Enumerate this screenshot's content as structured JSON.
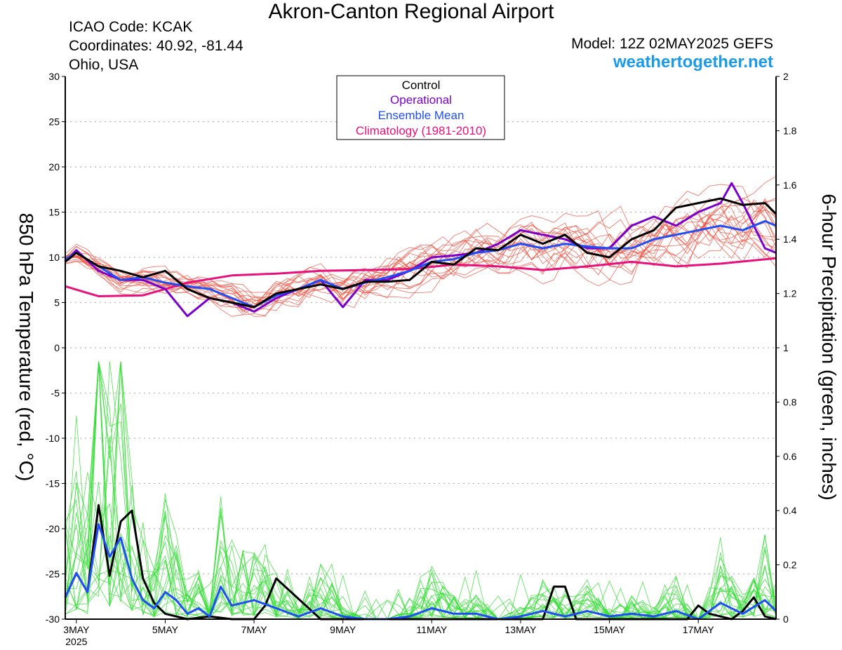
{
  "header": {
    "title": "Akron-Canton Regional Airport",
    "icao": "ICAO Code: KCAK",
    "coords": "Coordinates: 40.92, -81.44",
    "region": "Ohio, USA",
    "model": "Model: 12Z 02MAY2025 GEFS",
    "site": "weathertogether.net"
  },
  "colors": {
    "control": "#000000",
    "operational": "#7a00cc",
    "ensemble_mean": "#1f4ef5",
    "climatology": "#e8107a",
    "members_temp": "#f04a3a",
    "members_precip": "#33dd33",
    "site": "#1a9ae8"
  },
  "chart_data": {
    "type": "line",
    "grid": true,
    "legend_position": "top-center",
    "ylabel_left": "850 hPa Temperature (red, °C)",
    "ylabel_right": "6-hour Precipitation (green, inches)",
    "ylim_left": [
      -30,
      30
    ],
    "ylim_right": [
      0,
      2
    ],
    "yticks_left": [
      "30",
      "25",
      "20",
      "15",
      "10",
      "5",
      "0",
      "-5",
      "-10",
      "-15",
      "-20",
      "-25",
      "-30"
    ],
    "yticks_right": [
      "2",
      "1.8",
      "1.6",
      "1.4",
      "1.2",
      "1",
      "0.8",
      "0.6",
      "0.4",
      "0.2",
      "0"
    ],
    "x_start": "2025-05-02T18:00Z",
    "x_end": "2025-05-18T18:00Z",
    "x_ticks": [
      {
        "label": "3MAY",
        "sub": "2025",
        "x": "2025-05-03T00:00Z"
      },
      {
        "label": "5MAY",
        "x": "2025-05-05T00:00Z"
      },
      {
        "label": "7MAY",
        "x": "2025-05-07T00:00Z"
      },
      {
        "label": "9MAY",
        "x": "2025-05-09T00:00Z"
      },
      {
        "label": "11MAY",
        "x": "2025-05-11T00:00Z"
      },
      {
        "label": "13MAY",
        "x": "2025-05-13T00:00Z"
      },
      {
        "label": "15MAY",
        "x": "2025-05-15T00:00Z"
      },
      {
        "label": "17MAY",
        "x": "2025-05-17T00:00Z"
      }
    ],
    "legend": [
      "Control",
      "Operational",
      "Ensemble Mean",
      "Climatology (1981-2010)"
    ],
    "series": [
      {
        "name": "Control",
        "axis": "left",
        "x": [
          "2025-05-02T18:00Z",
          "2025-05-03T00:00Z",
          "2025-05-03T12:00Z",
          "2025-05-04T00:00Z",
          "2025-05-04T12:00Z",
          "2025-05-05T00:00Z",
          "2025-05-05T12:00Z",
          "2025-05-06T00:00Z",
          "2025-05-06T12:00Z",
          "2025-05-07T00:00Z",
          "2025-05-07T12:00Z",
          "2025-05-08T00:00Z",
          "2025-05-08T12:00Z",
          "2025-05-09T00:00Z",
          "2025-05-09T12:00Z",
          "2025-05-10T00:00Z",
          "2025-05-10T12:00Z",
          "2025-05-11T00:00Z",
          "2025-05-11T12:00Z",
          "2025-05-12T00:00Z",
          "2025-05-12T12:00Z",
          "2025-05-13T00:00Z",
          "2025-05-13T12:00Z",
          "2025-05-14T00:00Z",
          "2025-05-14T12:00Z",
          "2025-05-15T00:00Z",
          "2025-05-15T12:00Z",
          "2025-05-16T00:00Z",
          "2025-05-16T12:00Z",
          "2025-05-17T00:00Z",
          "2025-05-17T12:00Z",
          "2025-05-18T00:00Z",
          "2025-05-18T12:00Z",
          "2025-05-18T18:00Z"
        ],
        "values": [
          9.5,
          10.5,
          9.0,
          8.5,
          7.8,
          8.5,
          6.5,
          5.5,
          5.0,
          4.5,
          6.0,
          6.5,
          7.0,
          6.5,
          7.3,
          7.3,
          7.5,
          9.5,
          9.2,
          11.0,
          10.8,
          12.5,
          11.5,
          12.5,
          10.5,
          10.0,
          12.0,
          13.0,
          15.5,
          16.0,
          16.5,
          15.8,
          16.0,
          14.8
        ]
      },
      {
        "name": "Operational",
        "axis": "left",
        "x": [
          "2025-05-02T18:00Z",
          "2025-05-03T00:00Z",
          "2025-05-03T12:00Z",
          "2025-05-04T00:00Z",
          "2025-05-04T12:00Z",
          "2025-05-05T00:00Z",
          "2025-05-05T12:00Z",
          "2025-05-06T00:00Z",
          "2025-05-06T12:00Z",
          "2025-05-07T00:00Z",
          "2025-05-07T12:00Z",
          "2025-05-08T00:00Z",
          "2025-05-08T12:00Z",
          "2025-05-09T00:00Z",
          "2025-05-09T12:00Z",
          "2025-05-10T00:00Z",
          "2025-05-10T12:00Z",
          "2025-05-11T00:00Z",
          "2025-05-11T12:00Z",
          "2025-05-12T00:00Z",
          "2025-05-12T12:00Z",
          "2025-05-13T00:00Z",
          "2025-05-13T12:00Z",
          "2025-05-14T00:00Z",
          "2025-05-14T12:00Z",
          "2025-05-15T00:00Z",
          "2025-05-15T12:00Z",
          "2025-05-16T00:00Z",
          "2025-05-16T12:00Z",
          "2025-05-17T00:00Z",
          "2025-05-17T12:00Z",
          "2025-05-17T18:00Z",
          "2025-05-18T00:00Z",
          "2025-05-18T12:00Z",
          "2025-05-18T18:00Z"
        ],
        "values": [
          9.5,
          10.8,
          8.5,
          7.5,
          7.5,
          6.5,
          3.5,
          5.5,
          5.0,
          4.0,
          5.5,
          6.5,
          7.5,
          4.5,
          7.5,
          7.5,
          8.5,
          10.0,
          10.2,
          10.5,
          11.5,
          13.0,
          12.5,
          12.0,
          11.0,
          11.0,
          13.5,
          14.5,
          13.5,
          15.0,
          16.0,
          18.2,
          16.0,
          11.0,
          10.5
        ]
      },
      {
        "name": "Ensemble Mean",
        "axis": "left",
        "x": [
          "2025-05-02T18:00Z",
          "2025-05-03T00:00Z",
          "2025-05-03T12:00Z",
          "2025-05-04T00:00Z",
          "2025-05-04T12:00Z",
          "2025-05-05T00:00Z",
          "2025-05-05T12:00Z",
          "2025-05-06T00:00Z",
          "2025-05-06T12:00Z",
          "2025-05-07T00:00Z",
          "2025-05-07T12:00Z",
          "2025-05-08T00:00Z",
          "2025-05-08T12:00Z",
          "2025-05-09T00:00Z",
          "2025-05-09T12:00Z",
          "2025-05-10T00:00Z",
          "2025-05-10T12:00Z",
          "2025-05-11T00:00Z",
          "2025-05-11T12:00Z",
          "2025-05-12T00:00Z",
          "2025-05-12T12:00Z",
          "2025-05-13T00:00Z",
          "2025-05-13T12:00Z",
          "2025-05-14T00:00Z",
          "2025-05-14T12:00Z",
          "2025-05-15T00:00Z",
          "2025-05-15T12:00Z",
          "2025-05-16T00:00Z",
          "2025-05-16T12:00Z",
          "2025-05-17T00:00Z",
          "2025-05-17T12:00Z",
          "2025-05-18T00:00Z",
          "2025-05-18T12:00Z",
          "2025-05-18T18:00Z"
        ],
        "values": [
          9.8,
          10.5,
          9.0,
          7.5,
          7.8,
          7.2,
          6.8,
          6.5,
          5.5,
          4.5,
          5.8,
          6.5,
          7.5,
          6.5,
          7.2,
          7.8,
          8.5,
          9.5,
          9.8,
          10.5,
          10.8,
          11.5,
          11.0,
          11.5,
          11.2,
          11.0,
          11.0,
          12.0,
          12.5,
          13.0,
          13.5,
          13.0,
          14.0,
          13.5
        ]
      },
      {
        "name": "Climatology (1981-2010)",
        "axis": "left",
        "x": [
          "2025-05-02T18:00Z",
          "2025-05-03T12:00Z",
          "2025-05-04T12:00Z",
          "2025-05-05T12:00Z",
          "2025-05-06T12:00Z",
          "2025-05-07T12:00Z",
          "2025-05-08T12:00Z",
          "2025-05-09T12:00Z",
          "2025-05-10T12:00Z",
          "2025-05-11T12:00Z",
          "2025-05-12T12:00Z",
          "2025-05-13T12:00Z",
          "2025-05-14T12:00Z",
          "2025-05-15T12:00Z",
          "2025-05-16T12:00Z",
          "2025-05-17T12:00Z",
          "2025-05-18T18:00Z"
        ],
        "values": [
          6.8,
          5.7,
          5.8,
          7.2,
          8.0,
          8.2,
          8.5,
          8.6,
          8.7,
          9.2,
          9.0,
          8.6,
          9.0,
          9.5,
          9.0,
          9.3,
          9.9
        ]
      },
      {
        "name": "Control",
        "axis": "right",
        "kind": "precip",
        "x": [
          "2025-05-02T18:00Z",
          "2025-05-03T00:00Z",
          "2025-05-03T06:00Z",
          "2025-05-03T12:00Z",
          "2025-05-03T18:00Z",
          "2025-05-04T00:00Z",
          "2025-05-04T06:00Z",
          "2025-05-04T12:00Z",
          "2025-05-04T18:00Z",
          "2025-05-05T00:00Z",
          "2025-05-05T12:00Z",
          "2025-05-06T00:00Z",
          "2025-05-06T12:00Z",
          "2025-05-07T00:00Z",
          "2025-05-07T06:00Z",
          "2025-05-07T12:00Z",
          "2025-05-08T12:00Z",
          "2025-05-09T00:00Z",
          "2025-05-13T12:00Z",
          "2025-05-13T18:00Z",
          "2025-05-14T00:00Z",
          "2025-05-14T06:00Z",
          "2025-05-14T12:00Z",
          "2025-05-16T18:00Z",
          "2025-05-17T00:00Z",
          "2025-05-17T06:00Z",
          "2025-05-17T18:00Z",
          "2025-05-18T00:00Z",
          "2025-05-18T06:00Z",
          "2025-05-18T12:00Z",
          "2025-05-18T18:00Z"
        ],
        "values": [
          0.08,
          0.17,
          0.1,
          0.42,
          0.16,
          0.36,
          0.4,
          0.15,
          0.06,
          0.02,
          0.0,
          0.01,
          0.0,
          0.0,
          0.05,
          0.15,
          0.0,
          0.0,
          0.0,
          0.12,
          0.12,
          0.0,
          0.0,
          0.0,
          0.05,
          0.02,
          0.0,
          0.03,
          0.08,
          0.01,
          0.0
        ]
      },
      {
        "name": "Ensemble Mean",
        "axis": "right",
        "kind": "precip",
        "x": [
          "2025-05-02T18:00Z",
          "2025-05-03T00:00Z",
          "2025-05-03T06:00Z",
          "2025-05-03T12:00Z",
          "2025-05-03T18:00Z",
          "2025-05-04T00:00Z",
          "2025-05-04T06:00Z",
          "2025-05-04T12:00Z",
          "2025-05-04T18:00Z",
          "2025-05-05T00:00Z",
          "2025-05-05T06:00Z",
          "2025-05-05T12:00Z",
          "2025-05-05T18:00Z",
          "2025-05-06T00:00Z",
          "2025-05-06T06:00Z",
          "2025-05-06T12:00Z",
          "2025-05-07T00:00Z",
          "2025-05-07T12:00Z",
          "2025-05-08T00:00Z",
          "2025-05-08T12:00Z",
          "2025-05-09T00:00Z",
          "2025-05-09T12:00Z",
          "2025-05-10T00:00Z",
          "2025-05-10T12:00Z",
          "2025-05-11T00:00Z",
          "2025-05-11T12:00Z",
          "2025-05-12T00:00Z",
          "2025-05-12T12:00Z",
          "2025-05-13T00:00Z",
          "2025-05-13T12:00Z",
          "2025-05-14T00:00Z",
          "2025-05-14T12:00Z",
          "2025-05-15T00:00Z",
          "2025-05-15T12:00Z",
          "2025-05-16T00:00Z",
          "2025-05-16T12:00Z",
          "2025-05-17T00:00Z",
          "2025-05-17T12:00Z",
          "2025-05-18T00:00Z",
          "2025-05-18T12:00Z",
          "2025-05-18T18:00Z"
        ],
        "values": [
          0.08,
          0.17,
          0.1,
          0.35,
          0.23,
          0.3,
          0.15,
          0.07,
          0.04,
          0.1,
          0.07,
          0.02,
          0.04,
          0.01,
          0.12,
          0.05,
          0.07,
          0.04,
          0.01,
          0.04,
          0.01,
          0.0,
          0.0,
          0.01,
          0.04,
          0.02,
          0.02,
          0.0,
          0.01,
          0.03,
          0.01,
          0.03,
          0.01,
          0.02,
          0.01,
          0.03,
          0.0,
          0.06,
          0.02,
          0.07,
          0.03
        ]
      }
    ]
  }
}
